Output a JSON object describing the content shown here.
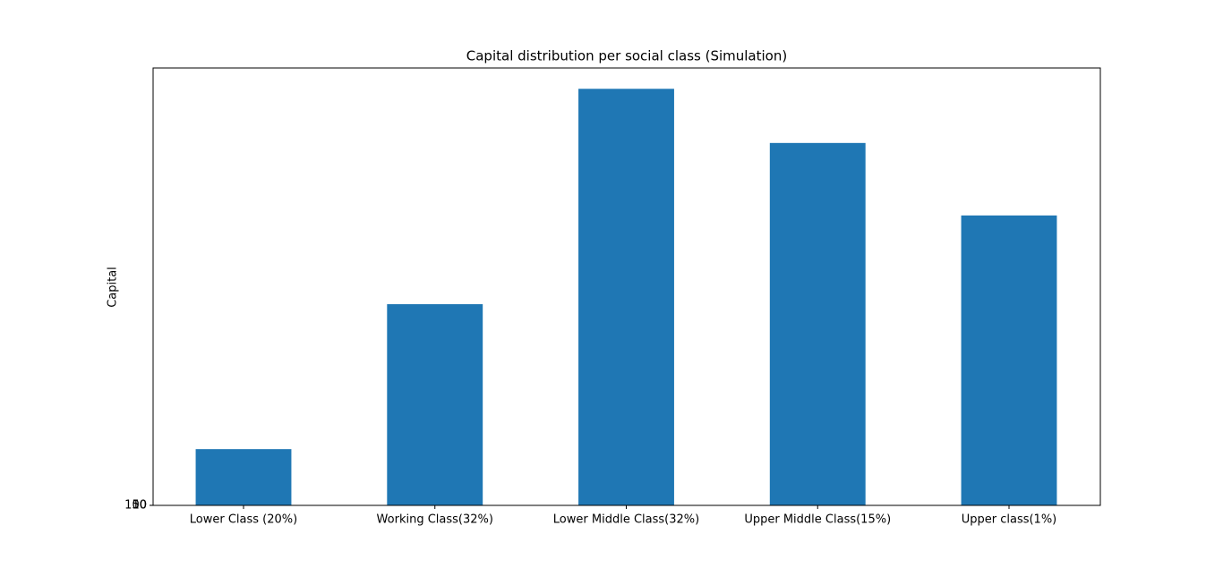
{
  "chart_data": {
    "type": "bar",
    "title": "Capital distribution per social class (Simulation)",
    "y_label": "Capital",
    "categories": [
      "Lower Class (20%)",
      "Working Class(32%)",
      "Lower Middle Class(32%)",
      "Upper Middle Class(15%)",
      "Upper class(1%)"
    ],
    "values": [
      135000,
      483000,
      1000000,
      870000,
      696000
    ],
    "color": "#1f77b4",
    "ylim": [
      0,
      1050000
    ],
    "yticks": [
      10,
      50,
      100
    ],
    "grid": false
  }
}
